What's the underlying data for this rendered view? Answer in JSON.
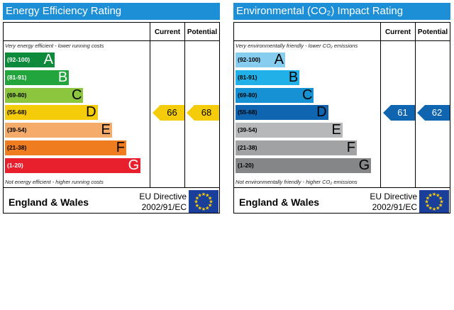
{
  "chart_data": [
    {
      "type": "bar",
      "title": "Energy Efficiency Rating",
      "columns": [
        "Current",
        "Potential"
      ],
      "note_top": "Very energy efficient - lower running costs",
      "note_bottom": "Not energy efficient - higher running costs",
      "bands": [
        {
          "letter": "A",
          "range": "(92-100)",
          "color": "#0e8a3c"
        },
        {
          "letter": "B",
          "range": "(81-91)",
          "color": "#22a53c"
        },
        {
          "letter": "C",
          "range": "(69-80)",
          "color": "#8cc63e"
        },
        {
          "letter": "D",
          "range": "(55-68)",
          "color": "#f5cc0a"
        },
        {
          "letter": "E",
          "range": "(39-54)",
          "color": "#f5ac6a"
        },
        {
          "letter": "F",
          "range": "(21-38)",
          "color": "#ef7d20"
        },
        {
          "letter": "G",
          "range": "(1-20)",
          "color": "#e8202e"
        }
      ],
      "current": {
        "value": 66,
        "band": "D",
        "color": "#f5cc0a"
      },
      "potential": {
        "value": 68,
        "band": "D",
        "color": "#f5cc0a"
      },
      "region": "England & Wales",
      "directive": [
        "EU Directive",
        "2002/91/EC"
      ],
      "header_color": "#1d8fd6"
    },
    {
      "type": "bar",
      "title": "Environmental (CO₂) Impact Rating",
      "columns": [
        "Current",
        "Potential"
      ],
      "note_top": "Very environmentally friendly - lower CO₂ emissions",
      "note_bottom": "Not environmentally friendly - higher CO₂ emissions",
      "bands": [
        {
          "letter": "A",
          "range": "(92-100)",
          "color": "#86cdf0"
        },
        {
          "letter": "B",
          "range": "(81-91)",
          "color": "#22b0e8"
        },
        {
          "letter": "C",
          "range": "(69-80)",
          "color": "#1691d4"
        },
        {
          "letter": "D",
          "range": "(55-68)",
          "color": "#0f65b0"
        },
        {
          "letter": "E",
          "range": "(39-54)",
          "color": "#b7b8ba"
        },
        {
          "letter": "F",
          "range": "(21-38)",
          "color": "#a1a2a4"
        },
        {
          "letter": "G",
          "range": "(1-20)",
          "color": "#858688"
        }
      ],
      "current": {
        "value": 61,
        "band": "D",
        "color": "#0f65b0"
      },
      "potential": {
        "value": 62,
        "band": "D",
        "color": "#0f65b0"
      },
      "region": "England & Wales",
      "directive": [
        "EU Directive",
        "2002/91/EC"
      ],
      "header_color": "#1d8fd6"
    }
  ],
  "icons": {
    "flag": "eu-flag-icon",
    "flag_color": "#1a3f9a",
    "star_color": "#ffd200"
  }
}
